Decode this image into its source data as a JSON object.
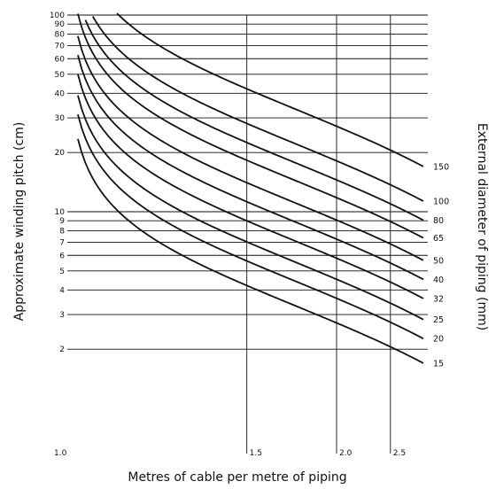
{
  "chart_data": {
    "type": "line",
    "title": "",
    "xlabel": "Metres of cable per metre of piping",
    "ylabel": "Approximate winding pitch (cm)",
    "y2label": "External diameter of piping (mm)",
    "x_scale": "reciprocal",
    "y_scale": "log",
    "xlim": [
      1.0,
      2.95
    ],
    "ylim": [
      1,
      100
    ],
    "x_ticks": [
      {
        "v": 1.0,
        "label": "1.0"
      },
      {
        "v": 1.5,
        "label": "1.5"
      },
      {
        "v": 2.0,
        "label": "2.0"
      },
      {
        "v": 2.5,
        "label": "2.5"
      }
    ],
    "y_ticks": [
      {
        "v": 100,
        "label": "100"
      },
      {
        "v": 90,
        "label": "90"
      },
      {
        "v": 80,
        "label": "80"
      },
      {
        "v": 70,
        "label": "70"
      },
      {
        "v": 60,
        "label": "60"
      },
      {
        "v": 50,
        "label": "50"
      },
      {
        "v": 40,
        "label": "40"
      },
      {
        "v": 30,
        "label": "30"
      },
      {
        "v": 20,
        "label": "20"
      },
      {
        "v": 10,
        "label": "10"
      },
      {
        "v": 9,
        "label": "9"
      },
      {
        "v": 8,
        "label": "8"
      },
      {
        "v": 7,
        "label": "7"
      },
      {
        "v": 6,
        "label": "6"
      },
      {
        "v": 5,
        "label": "5"
      },
      {
        "v": 4,
        "label": "4"
      },
      {
        "v": 3,
        "label": "3"
      },
      {
        "v": 2,
        "label": "2"
      }
    ],
    "grid": true,
    "series": [
      {
        "name": "150",
        "diameter_mm": 150
      },
      {
        "name": "100",
        "diameter_mm": 100
      },
      {
        "name": "80",
        "diameter_mm": 80
      },
      {
        "name": "65",
        "diameter_mm": 65
      },
      {
        "name": "50",
        "diameter_mm": 50
      },
      {
        "name": "40",
        "diameter_mm": 40
      },
      {
        "name": "32",
        "diameter_mm": 32
      },
      {
        "name": "25",
        "diameter_mm": 25
      },
      {
        "name": "20",
        "diameter_mm": 20
      },
      {
        "name": "15",
        "diameter_mm": 15
      }
    ]
  }
}
